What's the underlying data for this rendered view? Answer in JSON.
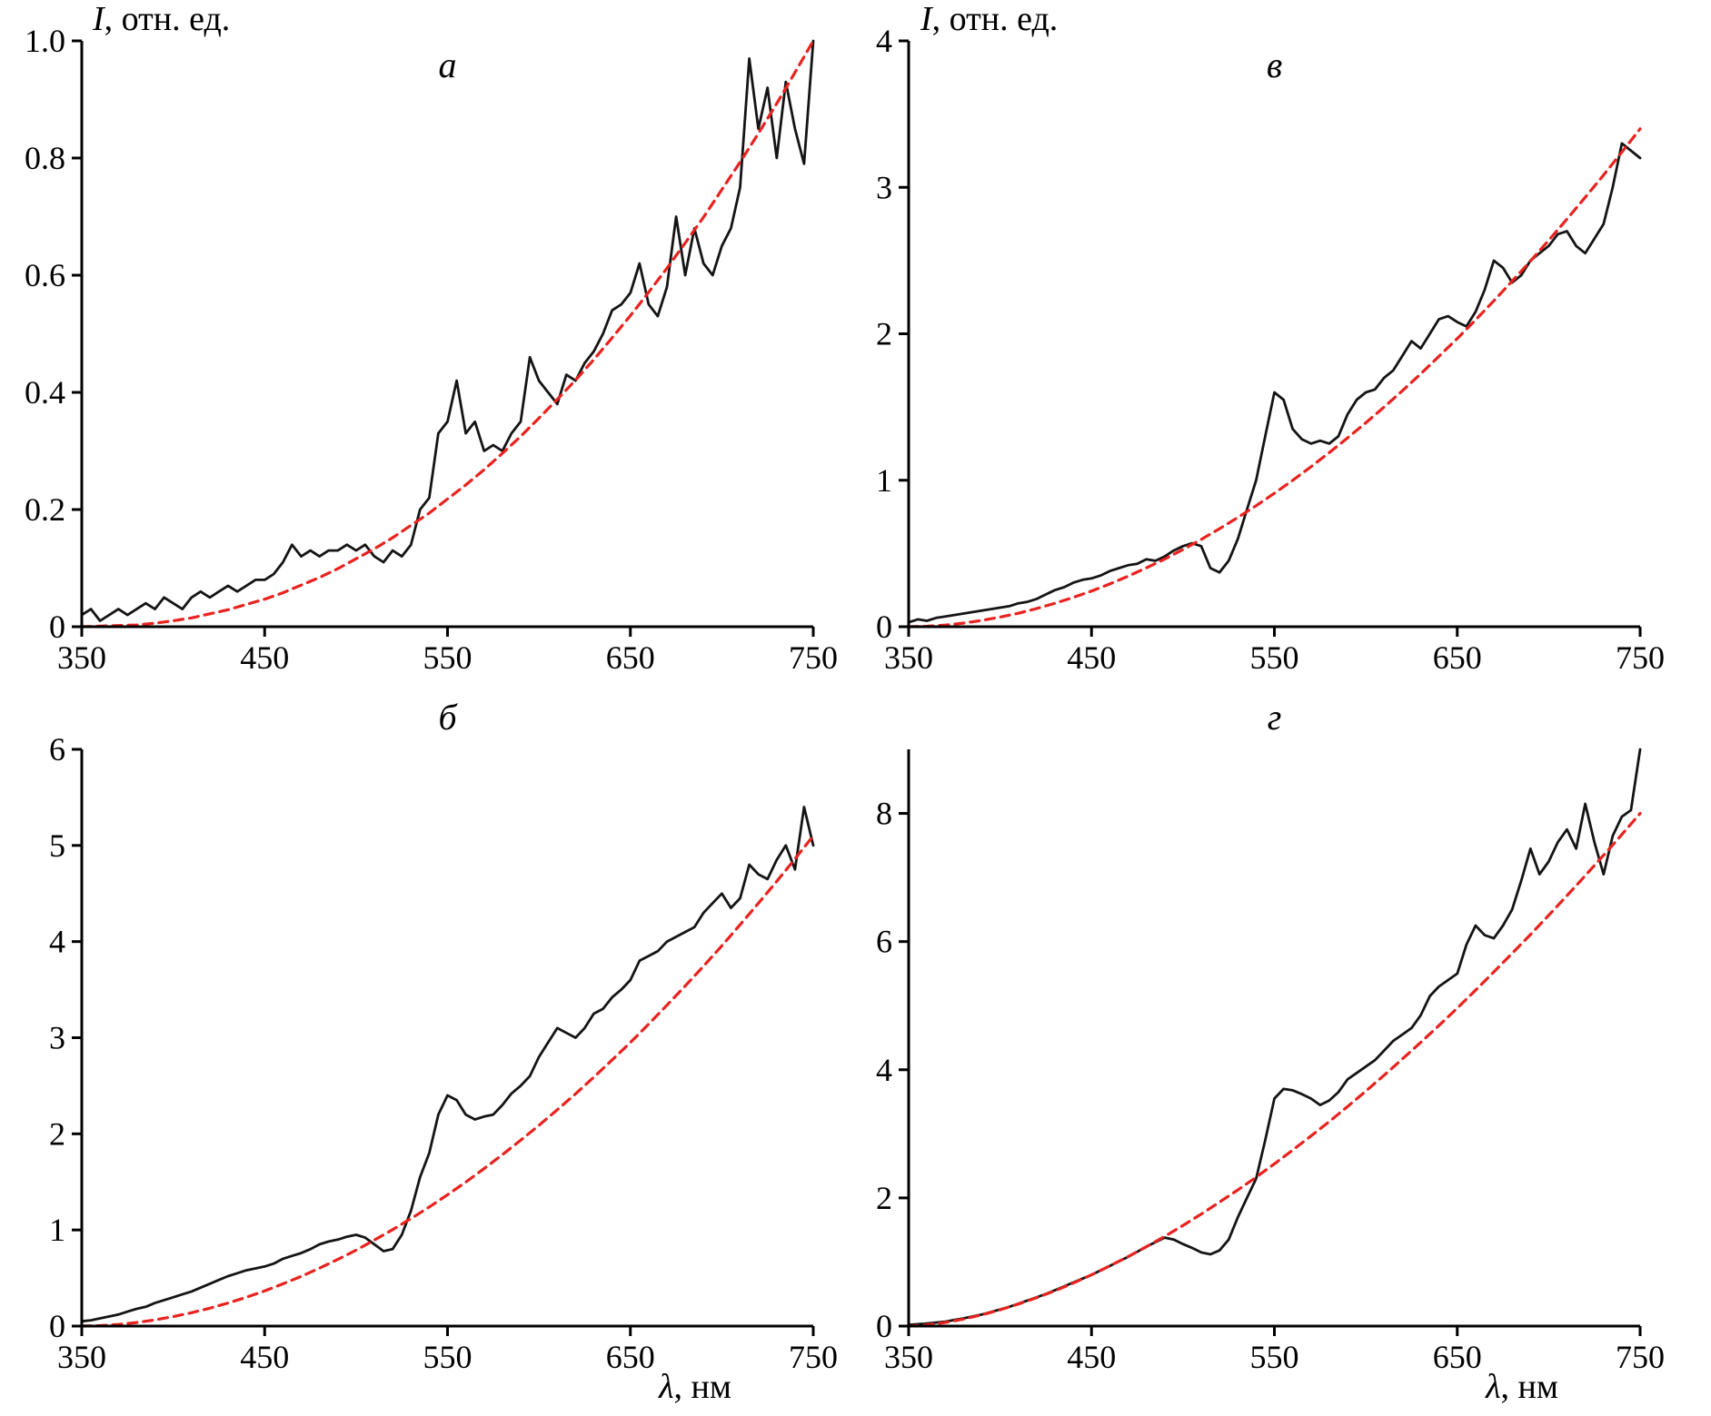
{
  "figure": {
    "background": "#ffffff",
    "black_color": "#141414",
    "red_color": "#e8231f"
  },
  "chart_data": [
    {
      "id": "a",
      "type": "line",
      "title": "а",
      "ylabel_var": "I",
      "ylabel_rest": ", отн. ед.",
      "xlabel_var": "",
      "xlabel_rest": "",
      "xlim": [
        350,
        750
      ],
      "ylim": [
        0,
        1.0
      ],
      "xticks": [
        350,
        450,
        550,
        650,
        750
      ],
      "xtick_labels": [
        "350",
        "450",
        "550",
        "650",
        "750"
      ],
      "yticks": [
        0,
        0.2,
        0.4,
        0.6,
        0.8,
        1.0
      ],
      "ytick_labels": [
        "0",
        "0.2",
        "0.4",
        "0.6",
        "0.8",
        "1.0"
      ],
      "grid": false,
      "legend": "none",
      "series": [
        {
          "name": "spectrum",
          "style": "solid-black",
          "x_start": 350,
          "x_step": 5,
          "values": [
            0.02,
            0.03,
            0.01,
            0.02,
            0.03,
            0.02,
            0.03,
            0.04,
            0.03,
            0.05,
            0.04,
            0.03,
            0.05,
            0.06,
            0.05,
            0.06,
            0.07,
            0.06,
            0.07,
            0.08,
            0.08,
            0.09,
            0.11,
            0.14,
            0.12,
            0.13,
            0.12,
            0.13,
            0.13,
            0.14,
            0.13,
            0.14,
            0.12,
            0.11,
            0.13,
            0.12,
            0.14,
            0.2,
            0.22,
            0.33,
            0.35,
            0.42,
            0.33,
            0.35,
            0.3,
            0.31,
            0.3,
            0.33,
            0.35,
            0.46,
            0.42,
            0.4,
            0.38,
            0.43,
            0.42,
            0.45,
            0.47,
            0.5,
            0.54,
            0.55,
            0.57,
            0.62,
            0.55,
            0.53,
            0.58,
            0.7,
            0.6,
            0.68,
            0.62,
            0.6,
            0.65,
            0.68,
            0.75,
            0.97,
            0.85,
            0.92,
            0.8,
            0.93,
            0.85,
            0.79,
            1.0
          ]
        },
        {
          "name": "fit",
          "style": "dashed-red",
          "x_start": 350,
          "x_step": 10,
          "values": [
            0,
            0.001,
            0.002,
            0.003,
            0.006,
            0.01,
            0.015,
            0.022,
            0.029,
            0.038,
            0.047,
            0.058,
            0.071,
            0.084,
            0.099,
            0.116,
            0.133,
            0.152,
            0.173,
            0.194,
            0.218,
            0.242,
            0.268,
            0.296,
            0.325,
            0.356,
            0.388,
            0.421,
            0.456,
            0.493,
            0.531,
            0.571,
            0.612,
            0.655,
            0.699,
            0.746,
            0.793,
            0.842,
            0.893,
            0.946,
            1.0
          ]
        }
      ]
    },
    {
      "id": "v",
      "type": "line",
      "title": "в",
      "ylabel_var": "I",
      "ylabel_rest": ", отн. ед.",
      "xlabel_var": "",
      "xlabel_rest": "",
      "xlim": [
        350,
        750
      ],
      "ylim": [
        0,
        4
      ],
      "xticks": [
        350,
        450,
        550,
        650,
        750
      ],
      "xtick_labels": [
        "350",
        "450",
        "550",
        "650",
        "750"
      ],
      "yticks": [
        0,
        1,
        2,
        3,
        4
      ],
      "ytick_labels": [
        "0",
        "1",
        "2",
        "3",
        "4"
      ],
      "grid": false,
      "legend": "none",
      "series": [
        {
          "name": "spectrum",
          "style": "solid-black",
          "x_start": 350,
          "x_step": 5,
          "values": [
            0.03,
            0.05,
            0.04,
            0.06,
            0.07,
            0.08,
            0.09,
            0.1,
            0.11,
            0.12,
            0.13,
            0.14,
            0.16,
            0.17,
            0.19,
            0.22,
            0.25,
            0.27,
            0.3,
            0.32,
            0.33,
            0.35,
            0.38,
            0.4,
            0.42,
            0.43,
            0.46,
            0.45,
            0.48,
            0.52,
            0.55,
            0.57,
            0.55,
            0.4,
            0.37,
            0.45,
            0.6,
            0.8,
            1.0,
            1.3,
            1.6,
            1.55,
            1.35,
            1.28,
            1.25,
            1.27,
            1.25,
            1.3,
            1.45,
            1.55,
            1.6,
            1.62,
            1.7,
            1.75,
            1.85,
            1.95,
            1.9,
            2.0,
            2.1,
            2.12,
            2.08,
            2.05,
            2.15,
            2.3,
            2.5,
            2.45,
            2.35,
            2.4,
            2.5,
            2.55,
            2.6,
            2.68,
            2.7,
            2.6,
            2.55,
            2.65,
            2.75,
            3.0,
            3.3,
            3.25,
            3.2
          ]
        },
        {
          "name": "fit",
          "style": "dashed-red",
          "x_start": 350,
          "x_step": 10,
          "values": [
            0,
            0.003,
            0.011,
            0.025,
            0.043,
            0.066,
            0.092,
            0.124,
            0.16,
            0.2,
            0.244,
            0.292,
            0.345,
            0.402,
            0.462,
            0.527,
            0.596,
            0.669,
            0.746,
            0.826,
            0.911,
            0.999,
            1.092,
            1.189,
            1.289,
            1.392,
            1.5,
            1.611,
            1.726,
            1.846,
            1.968,
            2.095,
            2.225,
            2.359,
            2.497,
            2.638,
            2.783,
            2.932,
            3.084,
            3.24,
            3.4
          ]
        }
      ]
    },
    {
      "id": "b",
      "type": "line",
      "title": "б",
      "ylabel_var": "",
      "ylabel_rest": "",
      "xlabel_var": "λ",
      "xlabel_rest": ", нм",
      "xlim": [
        350,
        750
      ],
      "ylim": [
        0,
        6
      ],
      "xticks": [
        350,
        450,
        550,
        650,
        750
      ],
      "xtick_labels": [
        "350",
        "450",
        "550",
        "650",
        "750"
      ],
      "yticks": [
        0,
        1,
        2,
        3,
        4,
        5,
        6
      ],
      "ytick_labels": [
        "0",
        "1",
        "2",
        "3",
        "4",
        "5",
        "6"
      ],
      "grid": false,
      "legend": "none",
      "series": [
        {
          "name": "spectrum",
          "style": "solid-black",
          "x_start": 350,
          "x_step": 5,
          "values": [
            0.05,
            0.06,
            0.08,
            0.1,
            0.12,
            0.15,
            0.18,
            0.2,
            0.24,
            0.27,
            0.3,
            0.33,
            0.36,
            0.4,
            0.44,
            0.48,
            0.52,
            0.55,
            0.58,
            0.6,
            0.62,
            0.65,
            0.7,
            0.73,
            0.76,
            0.8,
            0.85,
            0.88,
            0.9,
            0.93,
            0.95,
            0.92,
            0.85,
            0.78,
            0.8,
            0.95,
            1.2,
            1.55,
            1.8,
            2.2,
            2.4,
            2.35,
            2.2,
            2.15,
            2.18,
            2.2,
            2.3,
            2.42,
            2.5,
            2.6,
            2.8,
            2.95,
            3.1,
            3.05,
            3.0,
            3.1,
            3.25,
            3.3,
            3.42,
            3.5,
            3.6,
            3.8,
            3.85,
            3.9,
            4.0,
            4.05,
            4.1,
            4.15,
            4.3,
            4.4,
            4.5,
            4.35,
            4.45,
            4.8,
            4.7,
            4.65,
            4.85,
            5.0,
            4.75,
            5.4,
            5.0
          ]
        },
        {
          "name": "fit",
          "style": "dashed-red",
          "x_start": 350,
          "x_step": 10,
          "values": [
            0,
            0.005,
            0.017,
            0.037,
            0.064,
            0.098,
            0.139,
            0.186,
            0.24,
            0.3,
            0.366,
            0.439,
            0.517,
            0.603,
            0.694,
            0.79,
            0.895,
            1.003,
            1.118,
            1.239,
            1.366,
            1.498,
            1.638,
            1.783,
            1.933,
            2.088,
            2.25,
            2.416,
            2.589,
            2.768,
            2.951,
            3.142,
            3.338,
            3.539,
            3.745,
            3.956,
            4.175,
            4.398,
            4.626,
            4.86,
            5.1
          ]
        }
      ]
    },
    {
      "id": "g",
      "type": "line",
      "title": "г",
      "ylabel_var": "",
      "ylabel_rest": "",
      "xlabel_var": "λ",
      "xlabel_rest": ", нм",
      "xlim": [
        350,
        750
      ],
      "ylim": [
        0,
        9
      ],
      "xticks": [
        350,
        450,
        550,
        650,
        750
      ],
      "xtick_labels": [
        "350",
        "450",
        "550",
        "650",
        "750"
      ],
      "yticks": [
        0,
        2,
        4,
        6,
        8
      ],
      "ytick_labels": [
        "0",
        "2",
        "4",
        "6",
        "8"
      ],
      "grid": false,
      "legend": "none",
      "series": [
        {
          "name": "spectrum",
          "style": "solid-black",
          "x_start": 350,
          "x_step": 5,
          "values": [
            0.02,
            0.03,
            0.04,
            0.055,
            0.07,
            0.095,
            0.12,
            0.15,
            0.18,
            0.22,
            0.26,
            0.3,
            0.35,
            0.4,
            0.45,
            0.5,
            0.56,
            0.62,
            0.68,
            0.74,
            0.8,
            0.87,
            0.94,
            1.01,
            1.08,
            1.16,
            1.24,
            1.31,
            1.38,
            1.35,
            1.28,
            1.22,
            1.15,
            1.12,
            1.18,
            1.35,
            1.7,
            2.0,
            2.3,
            2.9,
            3.55,
            3.7,
            3.68,
            3.62,
            3.55,
            3.45,
            3.52,
            3.65,
            3.85,
            3.95,
            4.05,
            4.15,
            4.3,
            4.45,
            4.55,
            4.65,
            4.85,
            5.15,
            5.3,
            5.4,
            5.5,
            5.95,
            6.25,
            6.1,
            6.05,
            6.25,
            6.5,
            6.95,
            7.45,
            7.05,
            7.25,
            7.55,
            7.75,
            7.45,
            8.15,
            7.55,
            7.05,
            7.65,
            7.95,
            8.05,
            9.0
          ]
        },
        {
          "name": "fit",
          "style": "dashed-red",
          "x_start": 350,
          "x_step": 10,
          "values": [
            0,
            0.018,
            0.055,
            0.109,
            0.175,
            0.254,
            0.344,
            0.443,
            0.55,
            0.671,
            0.8,
            0.939,
            1.084,
            1.238,
            1.4,
            1.571,
            1.748,
            1.934,
            2.125,
            2.324,
            2.531,
            2.745,
            2.966,
            3.191,
            3.426,
            3.667,
            3.914,
            4.168,
            4.426,
            4.69,
            4.962,
            5.241,
            5.526,
            5.815,
            6.108,
            6.41,
            6.716,
            7.028,
            7.347,
            7.671,
            8.0
          ]
        }
      ]
    }
  ]
}
